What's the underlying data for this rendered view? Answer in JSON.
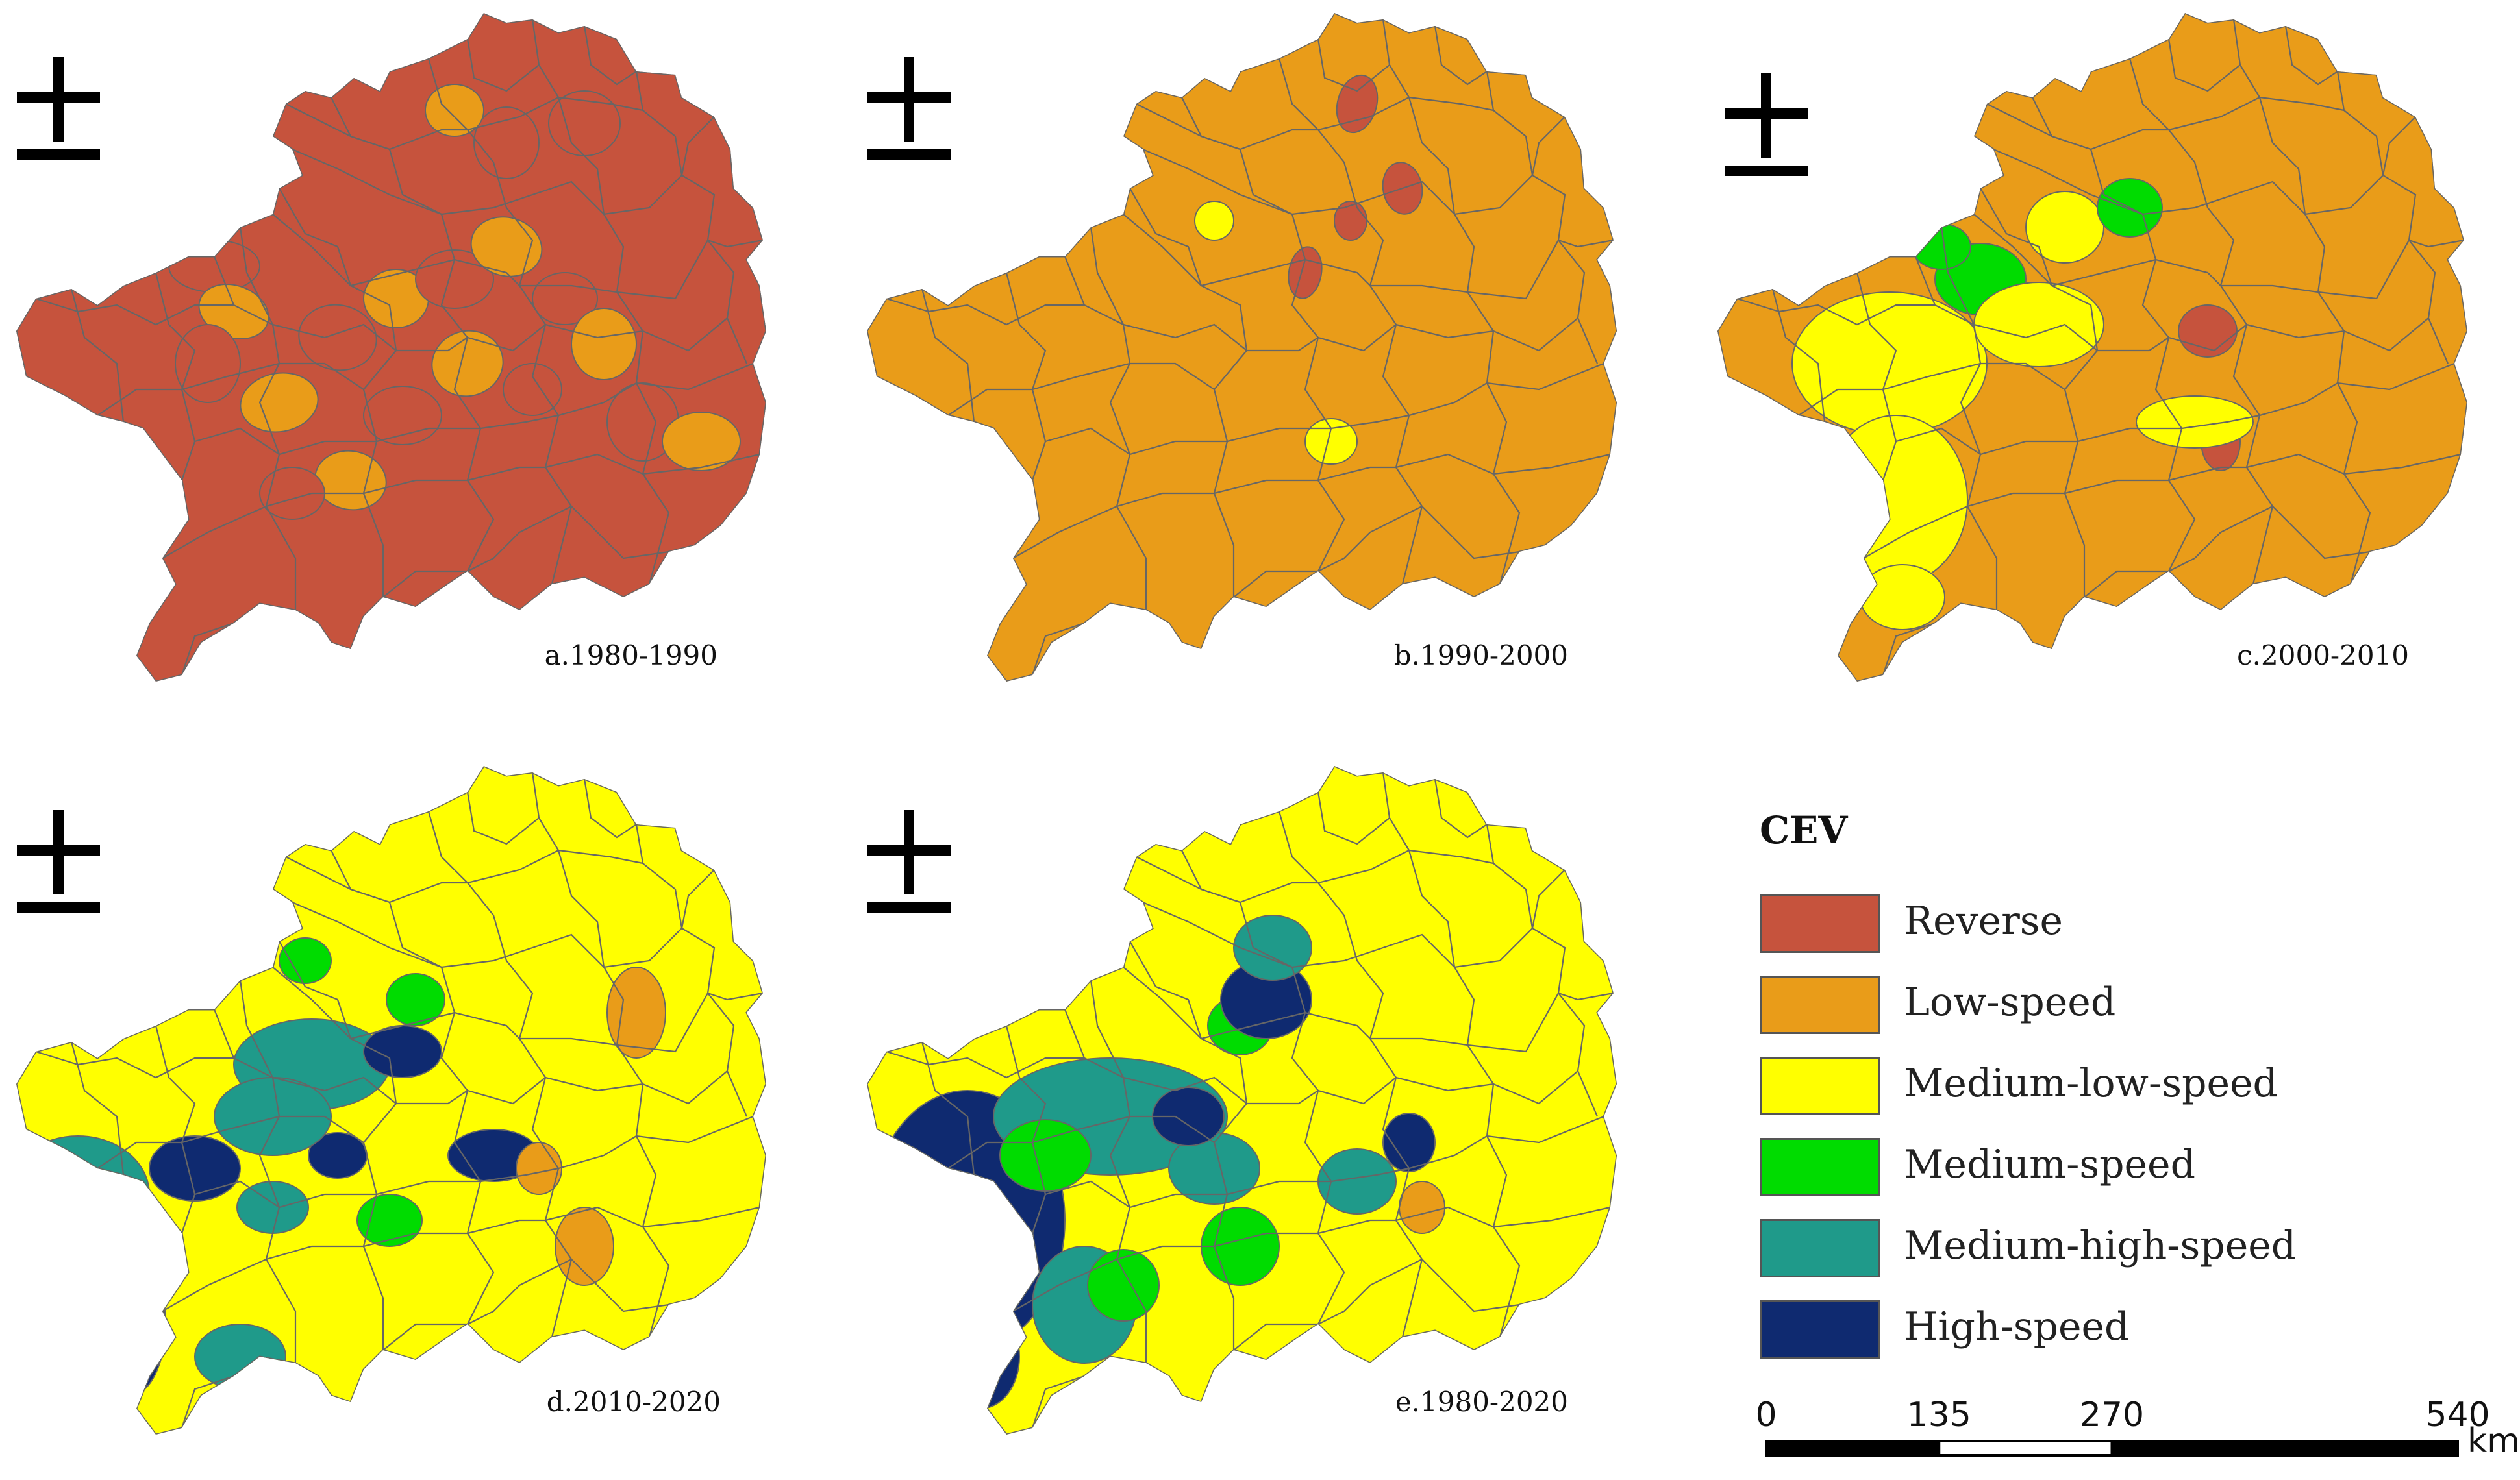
{
  "colors": {
    "reverse": "#c6533d",
    "low": "#e99c19",
    "medlow": "#ffff00",
    "med": "#00dc00",
    "medhigh": "#1f9a8a",
    "high": "#0f2a70",
    "boundary": "#666666"
  },
  "north_arrow_icon": "north-arrow-icon",
  "panels": [
    {
      "id": "a",
      "label": "a.1980-1990",
      "dominant": "reverse",
      "features": [
        "reverse",
        "low",
        "reverse",
        "low",
        "reverse",
        "low",
        "reverse",
        "low",
        "reverse",
        "low",
        "reverse",
        "low",
        "reverse",
        "low",
        "reverse",
        "reverse",
        "low",
        "reverse",
        "low",
        "reverse"
      ]
    },
    {
      "id": "b",
      "label": "b.1990-2000",
      "dominant": "low",
      "features": [
        "reverse",
        "reverse",
        "reverse",
        "reverse",
        "medlow",
        "medlow",
        "medlow"
      ]
    },
    {
      "id": "c",
      "label": "c.2000-2010",
      "dominant": "low",
      "features": [
        "medlow",
        "medlow",
        "medlow",
        "med",
        "med",
        "reverse",
        "reverse",
        "medlow",
        "medlow",
        "medlow",
        "med"
      ]
    },
    {
      "id": "d",
      "label": "d.2010-2020",
      "dominant": "medlow",
      "features": [
        "medhigh",
        "high",
        "med",
        "medhigh",
        "high",
        "med",
        "low",
        "high",
        "medhigh",
        "high",
        "low",
        "med",
        "medhigh",
        "high",
        "low",
        "medhigh"
      ]
    },
    {
      "id": "e",
      "label": "e.1980-2020",
      "dominant": "medlow",
      "features": [
        "high",
        "medhigh",
        "med",
        "high",
        "medhigh",
        "med",
        "high",
        "medhigh",
        "med",
        "medhigh",
        "high",
        "low",
        "med",
        "high",
        "medhigh"
      ]
    }
  ],
  "legend": {
    "title": "CEV",
    "items": [
      {
        "key": "reverse",
        "label": "Reverse"
      },
      {
        "key": "low",
        "label": "Low-speed"
      },
      {
        "key": "medlow",
        "label": "Medium-low-speed"
      },
      {
        "key": "med",
        "label": "Medium-speed"
      },
      {
        "key": "medhigh",
        "label": "Medium-high-speed"
      },
      {
        "key": "high",
        "label": "High-speed"
      }
    ]
  },
  "scale_bar": {
    "ticks": [
      "0",
      "135",
      "270",
      "540"
    ],
    "values": [
      0,
      135,
      270,
      540
    ],
    "unit": "km"
  }
}
